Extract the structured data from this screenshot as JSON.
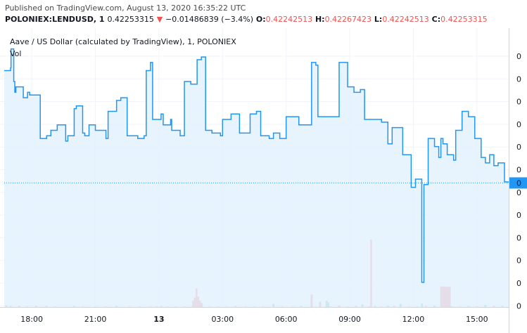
{
  "header": {
    "published": "Published on TradingView.com, August 13, 2020 16:35:22 UTC",
    "symbol": "POLONIEX:LENDUSD, 1",
    "last": "0.42253315",
    "change_arrow": "▼",
    "change": "−0.01486839 (−3.4%)",
    "o_label": "O:",
    "o_value": "0.42242513",
    "h_label": "H:",
    "h_value": "0.42267423",
    "l_label": "L:",
    "l_value": "0.42242513",
    "c_label": "C:",
    "c_value": "0.42253315"
  },
  "colors": {
    "line": "#2196f3",
    "area": "#e3f1fd",
    "vol_up": "#26a69a",
    "vol_down": "#ef5350",
    "last_price": "#2196f3"
  },
  "chart_data": {
    "type": "area",
    "title": "Aave / US Dollar (calculated by TradingView), 1, POLONIEX",
    "subtitle": "Vol",
    "x_tick_labels": [
      "18:00",
      "21:00",
      "13",
      "03:00",
      "06:00",
      "09:00",
      "12:00",
      "15:00"
    ],
    "x_tick_bold": [
      false,
      false,
      true,
      false,
      false,
      false,
      false,
      false
    ],
    "y_tick_labels": [
      "0",
      "0",
      "0",
      "0",
      "0",
      "0",
      "0",
      "0",
      "0",
      "0",
      "0",
      "0"
    ],
    "last_price_label": "0",
    "grid": true,
    "x_range_hours": [
      16.7,
      40.5
    ],
    "y_range": [
      0.38,
      0.475
    ],
    "series": [
      {
        "name": "",
        "x": [
          16.7,
          17.0,
          17.02,
          17.15,
          17.2,
          17.25,
          17.6,
          17.8,
          17.9,
          18.4,
          18.5,
          18.7,
          18.9,
          19.2,
          19.6,
          19.7,
          20.0,
          20.1,
          20.4,
          20.5,
          20.7,
          21.0,
          21.3,
          21.5,
          21.6,
          22.0,
          22.2,
          22.45,
          22.5,
          23.0,
          23.3,
          23.4,
          23.6,
          23.7,
          24.1,
          24.2,
          24.55,
          24.6,
          25.0,
          25.2,
          25.5,
          25.8,
          26.0,
          26.2,
          26.5,
          26.9,
          27.0,
          27.4,
          27.8,
          28.0,
          28.3,
          28.6,
          28.8,
          29.2,
          29.4,
          29.7,
          30.0,
          30.5,
          30.6,
          31.0,
          31.2,
          31.4,
          31.5,
          32.0,
          32.1,
          32.4,
          32.5,
          32.9,
          33.2,
          33.5,
          33.7,
          34.0,
          34.5,
          34.8,
          35.0,
          35.5,
          35.9,
          36.1,
          36.4,
          36.5,
          36.7,
          37.0,
          37.2,
          37.3,
          37.4,
          37.6,
          37.9,
          38.0,
          38.3,
          38.6,
          38.9,
          39.2,
          39.4,
          39.6,
          39.8,
          40.0,
          40.3,
          40.5
        ],
        "y": [
          0.464,
          0.465,
          0.472,
          0.46,
          0.456,
          0.458,
          0.454,
          0.456,
          0.455,
          0.439,
          0.439,
          0.44,
          0.442,
          0.444,
          0.438,
          0.44,
          0.45,
          0.451,
          0.441,
          0.44,
          0.444,
          0.442,
          0.442,
          0.439,
          0.449,
          0.453,
          0.454,
          0.454,
          0.44,
          0.439,
          0.44,
          0.464,
          0.467,
          0.446,
          0.448,
          0.444,
          0.446,
          0.442,
          0.44,
          0.46,
          0.459,
          0.468,
          0.469,
          0.442,
          0.441,
          0.44,
          0.446,
          0.448,
          0.441,
          0.441,
          0.448,
          0.449,
          0.44,
          0.439,
          0.441,
          0.439,
          0.447,
          0.447,
          0.444,
          0.444,
          0.467,
          0.466,
          0.447,
          0.447,
          0.447,
          0.447,
          0.467,
          0.458,
          0.456,
          0.457,
          0.446,
          0.446,
          0.445,
          0.437,
          0.443,
          0.433,
          0.421,
          0.424,
          0.386,
          0.422,
          0.439,
          0.436,
          0.432,
          0.439,
          0.437,
          0.433,
          0.431,
          0.442,
          0.449,
          0.447,
          0.439,
          0.432,
          0.43,
          0.433,
          0.429,
          0.43,
          0.423,
          0.4226
        ]
      }
    ],
    "volume": {
      "x": [
        16.8,
        17.0,
        17.4,
        17.8,
        18.2,
        18.7,
        19.1,
        20.0,
        20.4,
        21.0,
        21.5,
        22.0,
        22.6,
        23.1,
        23.6,
        23.9,
        24.1,
        24.4,
        24.8,
        25.2,
        25.6,
        26.0,
        26.4,
        26.8,
        27.2,
        27.6,
        28.1,
        28.5,
        28.9,
        29.4,
        29.8,
        30.3,
        30.7,
        31.2,
        31.6,
        32.1,
        32.5,
        32.9,
        33.3,
        33.6,
        33.9,
        34.2,
        34.5,
        34.8,
        35.1,
        35.4,
        35.8,
        36.2,
        36.6,
        37.0,
        37.4,
        37.8,
        38.2,
        38.6,
        39.0,
        39.4,
        39.8,
        40.2
      ],
      "values": [
        0.3,
        0.2,
        0.2,
        0.1,
        0.2,
        0.2,
        0.1,
        0.2,
        0.1,
        0.1,
        0.1,
        0.2,
        0.1,
        0.1,
        0.1,
        0.1,
        0.2,
        0.1,
        0.1,
        0.1,
        0.1,
        0.2,
        0.1,
        0.1,
        0.1,
        0.2,
        0.1,
        0.1,
        0.1,
        0.6,
        0.1,
        0.1,
        0.2,
        2.4,
        1.0,
        0.1,
        0.3,
        0.1,
        0.2,
        0.5,
        0.1,
        0.2,
        0.1,
        0.2,
        0.2,
        0.6,
        0.1,
        0.1,
        0.2,
        0.3,
        0.1,
        0.1,
        0.1,
        0.2,
        0.1,
        0.4,
        0.2,
        0.2
      ],
      "up": [
        true,
        true,
        false,
        true,
        false,
        true,
        false,
        true,
        false,
        true,
        false,
        true,
        false,
        true,
        false,
        true,
        true,
        false,
        true,
        false,
        true,
        false,
        true,
        true,
        false,
        true,
        false,
        true,
        false,
        true,
        false,
        true,
        true,
        false,
        false,
        true,
        false,
        true,
        false,
        true,
        false,
        true,
        false,
        true,
        false,
        true,
        false,
        true,
        false,
        true,
        false,
        true,
        false,
        true,
        false,
        true,
        false,
        true
      ],
      "highlight": [
        {
          "x": 25.6,
          "values": [
            1.2,
            1.8,
            3.6,
            2.0,
            1.2,
            0.8
          ],
          "up": false
        },
        {
          "x": 34.0,
          "values": [
            13.0
          ],
          "up": false
        },
        {
          "x": 37.3,
          "values": [
            4.0,
            3.9,
            3.9,
            3.9,
            3.9,
            3.9
          ],
          "up": false
        },
        {
          "x": 31.9,
          "values": [
            1.2,
            0.9
          ],
          "up": true
        },
        {
          "x": 36.4,
          "values": [
            0.7
          ],
          "up": true
        }
      ]
    }
  }
}
